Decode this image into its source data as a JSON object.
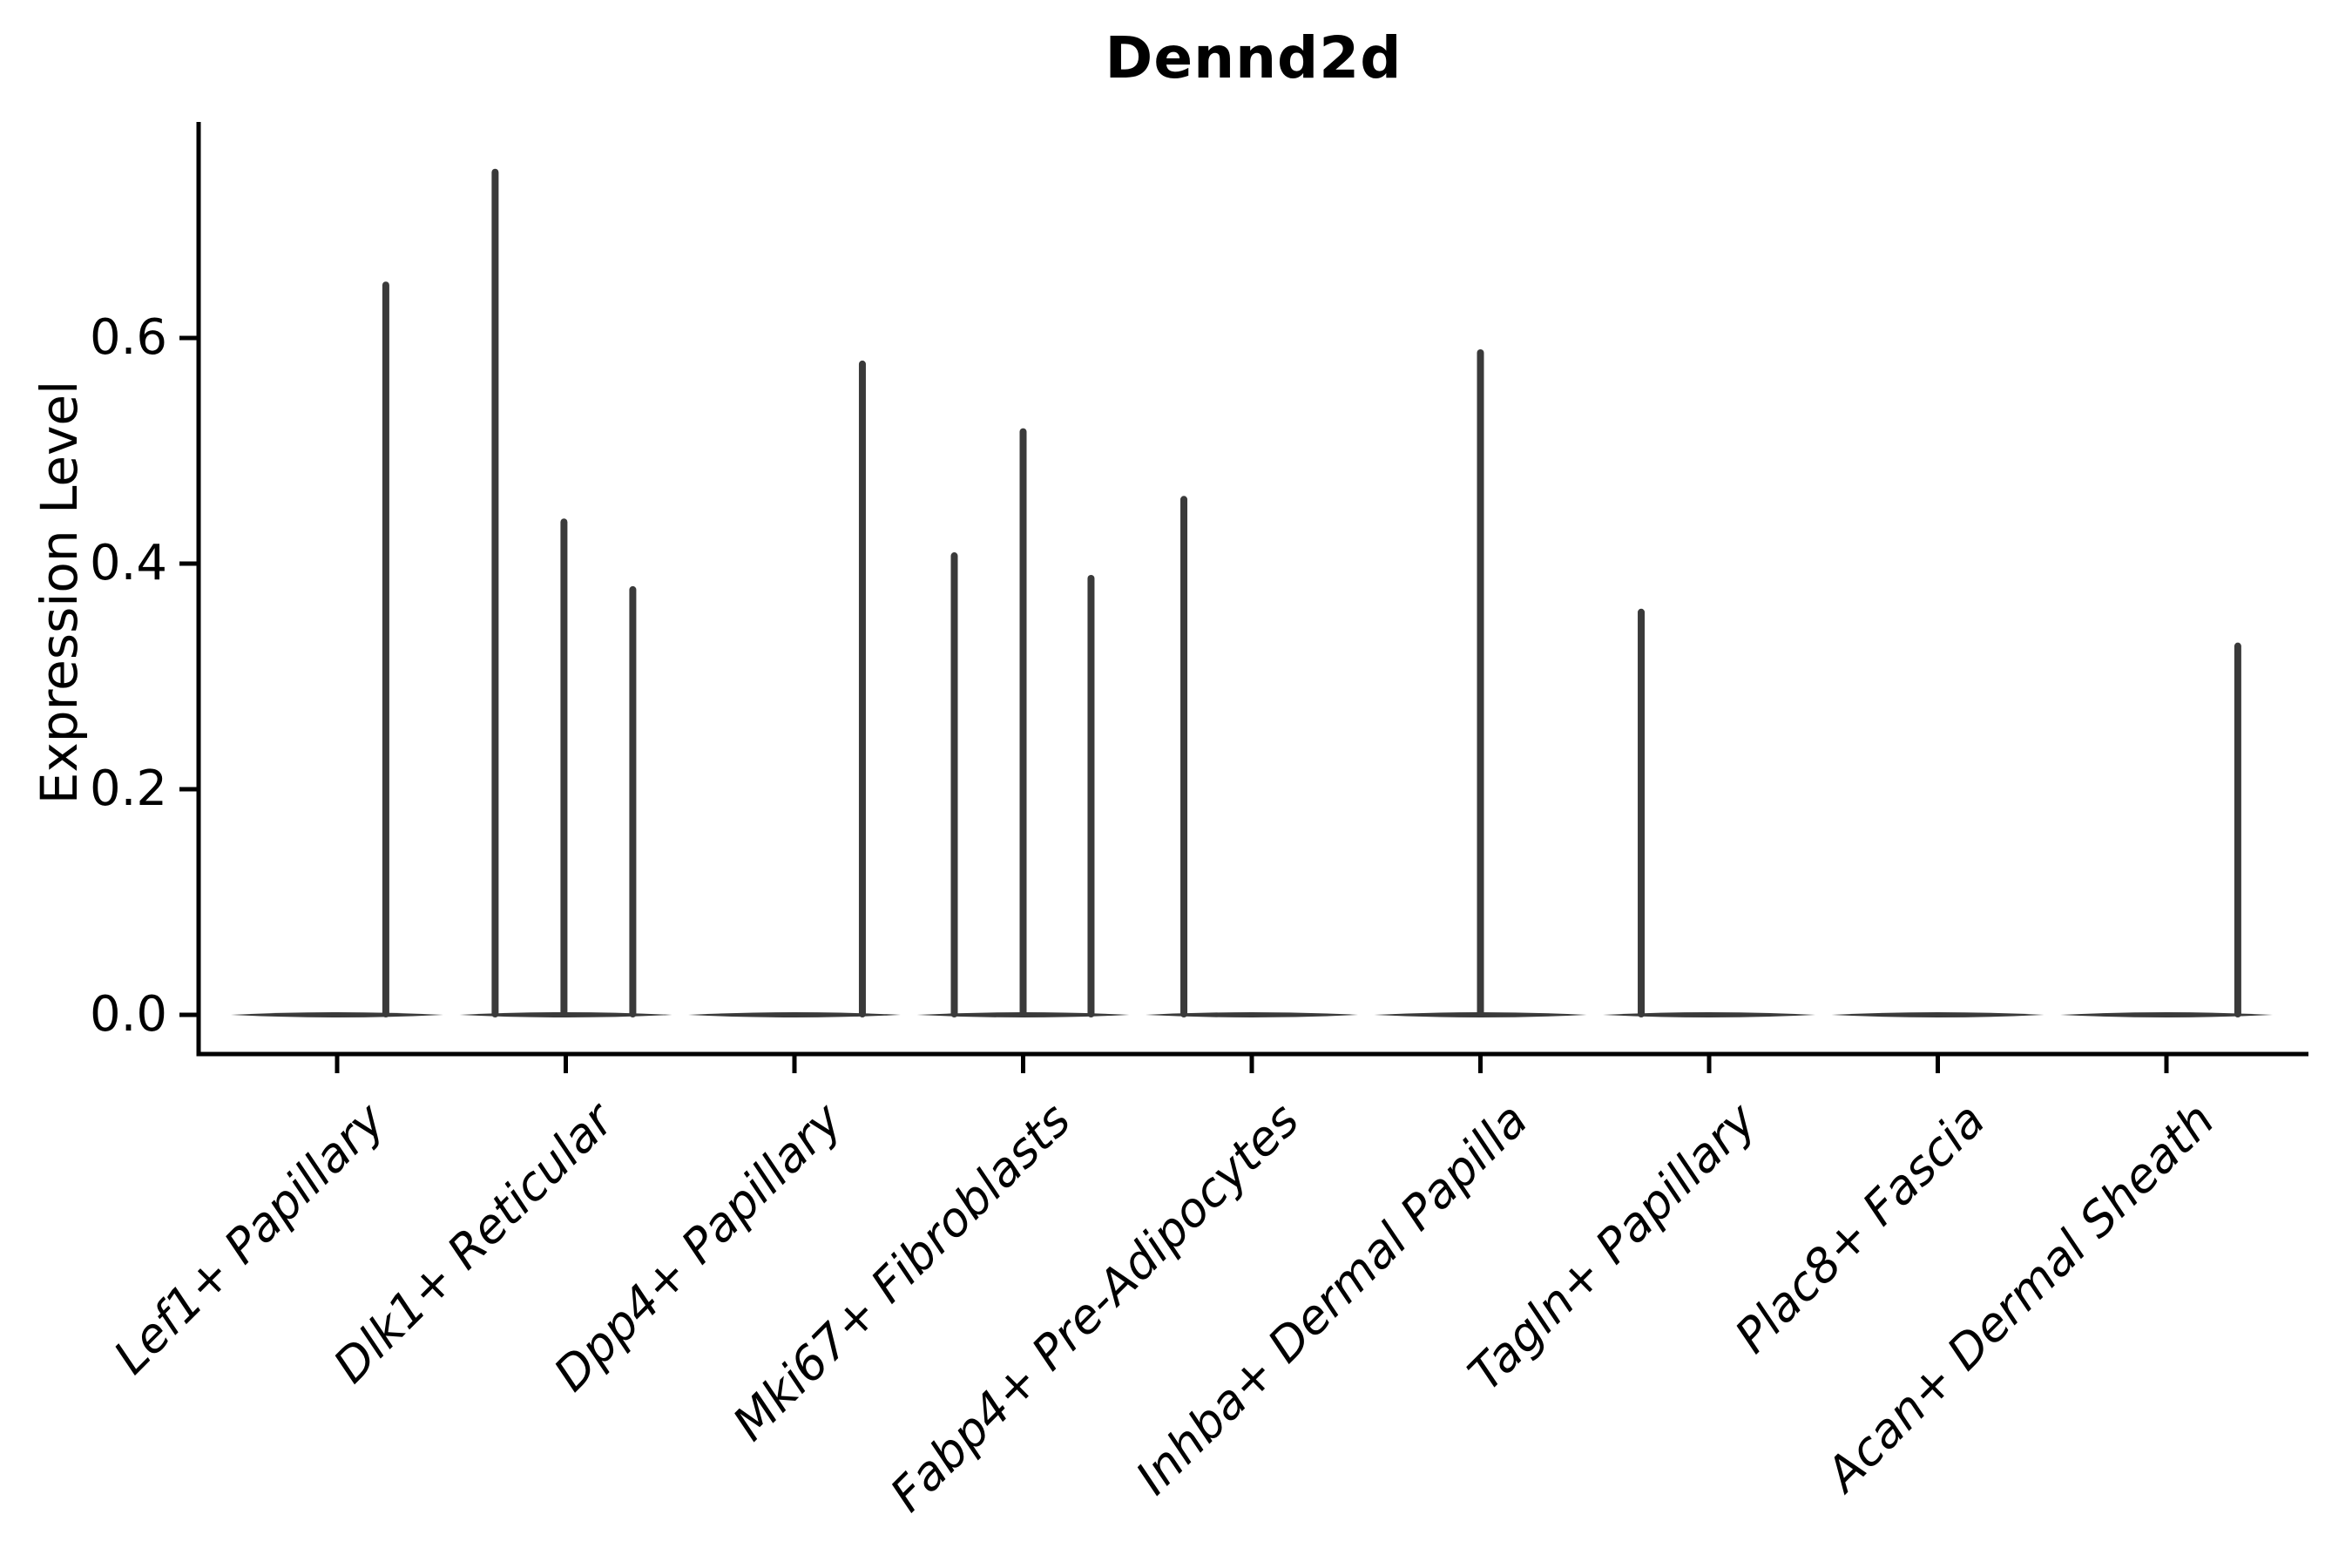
{
  "title": "Dennd2d",
  "chart_data": {
    "type": "violin",
    "title": "Dennd2d",
    "xlabel": "",
    "ylabel": "Expression Level",
    "yticks": [
      "0.0",
      "0.2",
      "0.4",
      "0.6"
    ],
    "ytick_values": [
      0.0,
      0.2,
      0.4,
      0.6
    ],
    "ylim": [
      -0.035,
      0.79
    ],
    "grid": false,
    "legend": "none",
    "categories": [
      "Lef1+ Papillary",
      "Dlk1+ Reticular",
      "Dpp4+ Papillary",
      "Mki67+ Fibroblasts",
      "Fabp4+ Pre-Adipocytes",
      "Inhba+ Dermal Papilla",
      "Tagln+ Papillary",
      "Plac8+ Fascia",
      "Acan+ Dermal Sheath"
    ],
    "series": [
      {
        "category": "Lef1+ Papillary",
        "baseline_value": 0.0,
        "spikes": [
          {
            "offset_frac": 0.213,
            "value": 0.65
          }
        ]
      },
      {
        "category": "Dlk1+ Reticular",
        "baseline_value": 0.0,
        "spikes": [
          {
            "offset_frac": -0.309,
            "value": 0.75
          },
          {
            "offset_frac": -0.008,
            "value": 0.44
          },
          {
            "offset_frac": 0.293,
            "value": 0.38
          }
        ]
      },
      {
        "category": "Dpp4+ Papillary",
        "baseline_value": 0.0,
        "spikes": [
          {
            "offset_frac": 0.297,
            "value": 0.58
          }
        ]
      },
      {
        "category": "Mki67+ Fibroblasts",
        "baseline_value": 0.0,
        "spikes": [
          {
            "offset_frac": -0.301,
            "value": 0.41
          },
          {
            "offset_frac": 0.0,
            "value": 0.52
          },
          {
            "offset_frac": 0.297,
            "value": 0.39
          }
        ]
      },
      {
        "category": "Fabp4+ Pre-Adipocytes",
        "baseline_value": 0.0,
        "spikes": [
          {
            "offset_frac": -0.297,
            "value": 0.46
          }
        ]
      },
      {
        "category": "Inhba+ Dermal Papilla",
        "baseline_value": 0.0,
        "spikes": [
          {
            "offset_frac": 0.0,
            "value": 0.59
          }
        ]
      },
      {
        "category": "Tagln+ Papillary",
        "baseline_value": 0.0,
        "spikes": [
          {
            "offset_frac": -0.297,
            "value": 0.36
          }
        ]
      },
      {
        "category": "Plac8+ Fascia",
        "baseline_value": 0.0,
        "spikes": []
      },
      {
        "category": "Acan+ Dermal Sheath",
        "baseline_value": 0.0,
        "spikes": [
          {
            "offset_frac": 0.312,
            "value": 0.33
          }
        ]
      }
    ],
    "colors": {
      "violin_line": "#3a3a3a",
      "axis": "#000000",
      "text": "#000000",
      "background": "#ffffff"
    }
  }
}
